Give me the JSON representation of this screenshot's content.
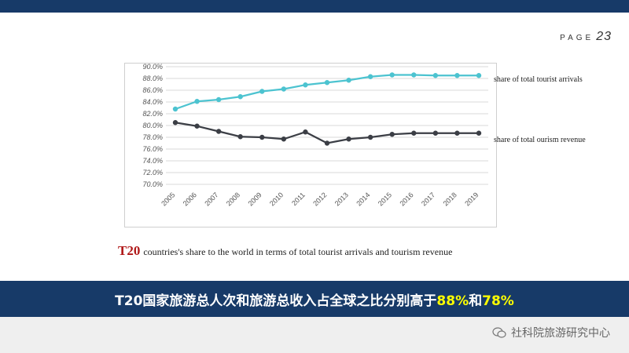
{
  "page": {
    "label": "PAGE",
    "number": "23"
  },
  "chart_data": {
    "type": "line",
    "x": [
      "2005",
      "2006",
      "2007",
      "2008",
      "2009",
      "2010",
      "2011",
      "2012",
      "2013",
      "2014",
      "2015",
      "2016",
      "2017",
      "2018",
      "2019"
    ],
    "y_ticks": [
      "70.0%",
      "72.0%",
      "74.0%",
      "76.0%",
      "78.0%",
      "80.0%",
      "82.0%",
      "84.0%",
      "86.0%",
      "88.0%",
      "90.0%"
    ],
    "ylim": [
      70,
      90
    ],
    "grid": true,
    "series": [
      {
        "name": "share of total tourist arrivals",
        "color": "#4cc3d0",
        "values": [
          82.8,
          84.1,
          84.4,
          84.9,
          85.8,
          86.2,
          86.9,
          87.3,
          87.7,
          88.3,
          88.6,
          88.6,
          88.5,
          88.5,
          88.5
        ]
      },
      {
        "name": "share of total ourism revenue",
        "color": "#3b3e45",
        "values": [
          80.5,
          79.9,
          79.0,
          78.1,
          78.0,
          77.7,
          78.9,
          77.0,
          77.7,
          78.0,
          78.5,
          78.7,
          78.7,
          78.7,
          78.7
        ]
      }
    ]
  },
  "caption": {
    "prefix": "T20",
    "text": "countries's share to the world in terms of  total tourist arrivals and tourism revenue"
  },
  "banner": {
    "part1": "T20国家旅游总人次和旅游总收入占全球之比分别高于",
    "pct1": "88%",
    "join": "和",
    "pct2": "78%"
  },
  "watermark": {
    "text": "社科院旅游研究中心",
    "icon": "wechat-icon"
  }
}
